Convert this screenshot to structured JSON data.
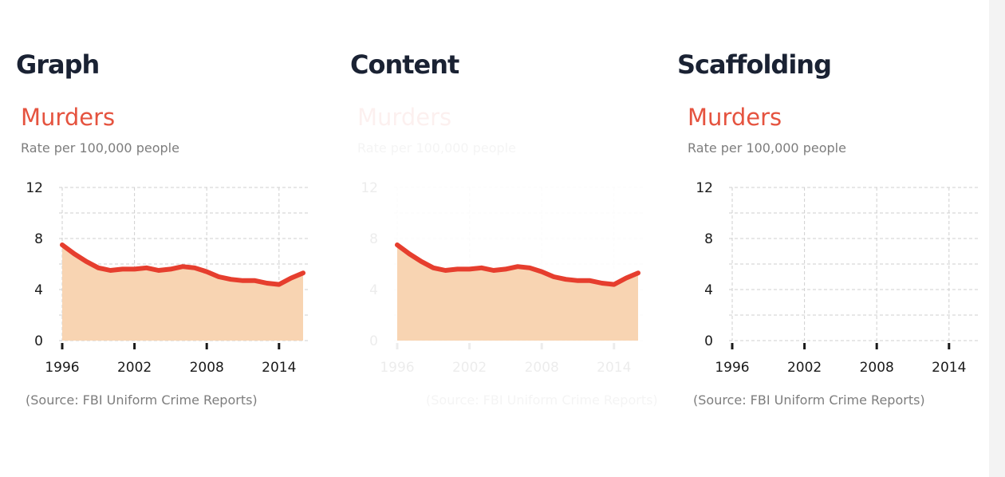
{
  "panels": [
    {
      "heading": "Graph"
    },
    {
      "heading": "Content"
    },
    {
      "heading": "Scaffolding"
    }
  ],
  "colors": {
    "line": "#e63e2e",
    "area": "#f8d4b2",
    "title": "#e5533f",
    "heading": "#1a2233",
    "grid": "#cfcfcf"
  },
  "chart_data": {
    "type": "area",
    "title": "Murders",
    "subtitle": "Rate per 100,000 people",
    "source": "(Source: FBI Uniform Crime Reports)",
    "xlabel": "",
    "ylabel": "",
    "x_ticks": [
      "1996",
      "2002",
      "2008",
      "2014"
    ],
    "y_ticks": [
      "0",
      "4",
      "8",
      "12"
    ],
    "xlim": [
      1996,
      2016
    ],
    "ylim": [
      0,
      12
    ],
    "grid": true,
    "x": [
      1996,
      1997,
      1998,
      1999,
      2000,
      2001,
      2002,
      2003,
      2004,
      2005,
      2006,
      2007,
      2008,
      2009,
      2010,
      2011,
      2012,
      2013,
      2014,
      2015,
      2016
    ],
    "values": [
      7.5,
      6.8,
      6.2,
      5.7,
      5.5,
      5.6,
      5.6,
      5.7,
      5.5,
      5.6,
      5.8,
      5.7,
      5.4,
      5.0,
      4.8,
      4.7,
      4.7,
      4.5,
      4.4,
      4.9,
      5.3
    ]
  }
}
